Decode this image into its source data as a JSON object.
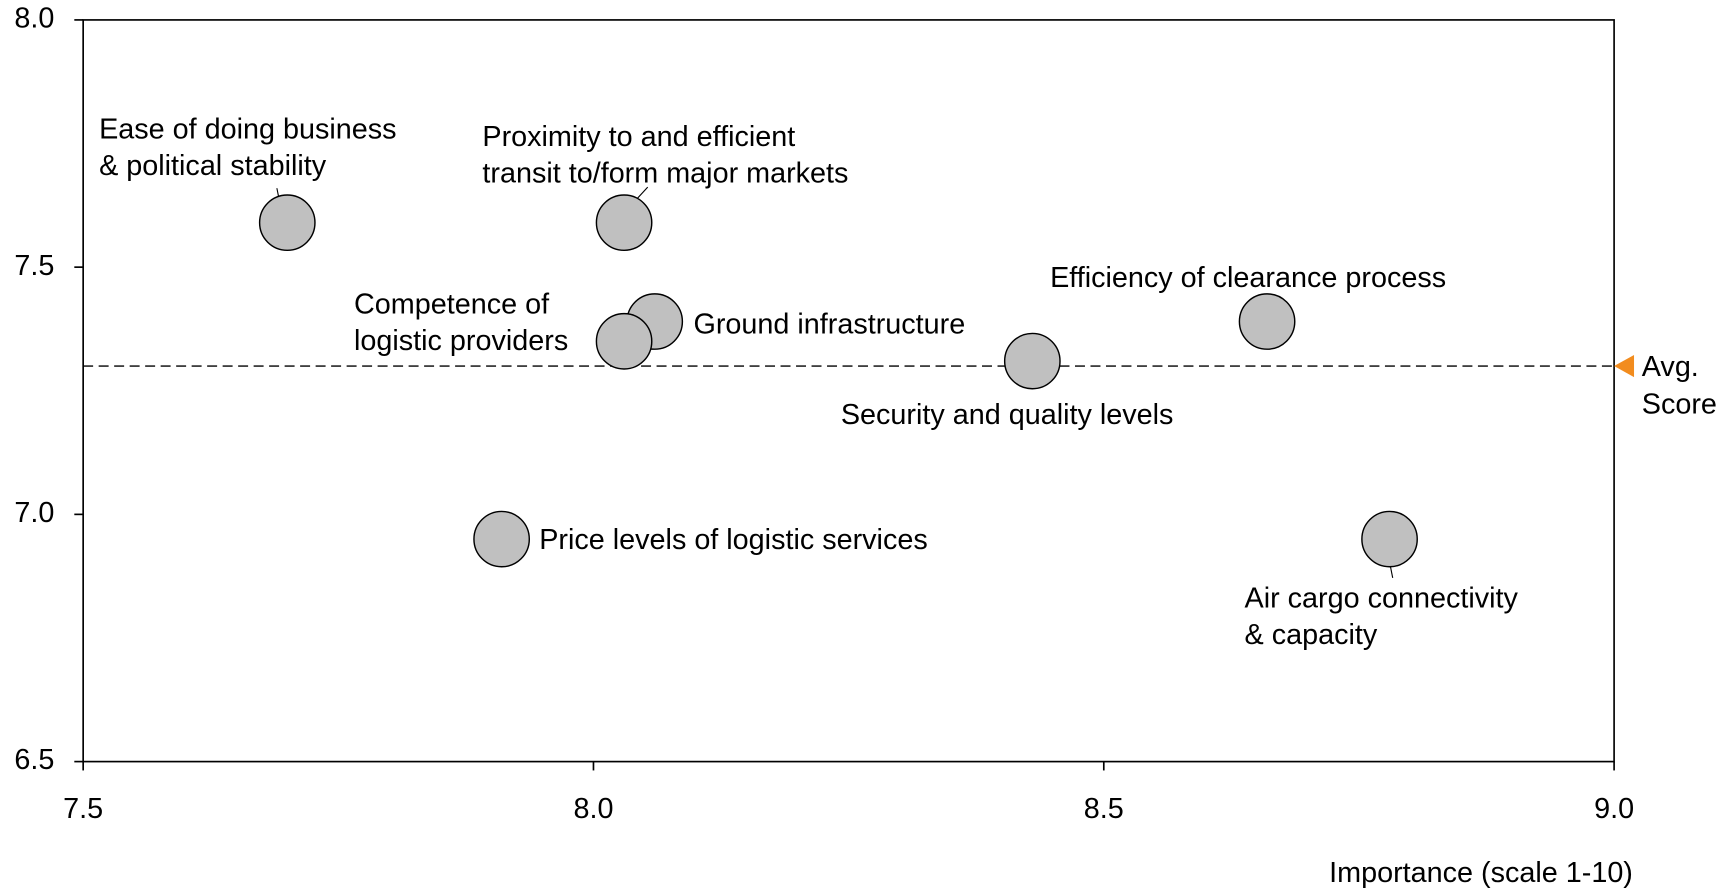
{
  "chart_data": {
    "type": "scatter",
    "x_label": "Importance (scale 1-10)",
    "xlim": [
      7.5,
      9.0
    ],
    "ylim": [
      6.5,
      8.0
    ],
    "xticks": [
      {
        "value": 7.5,
        "label": "7.5"
      },
      {
        "value": 8.0,
        "label": "8.0"
      },
      {
        "value": 8.5,
        "label": "8.5"
      },
      {
        "value": 9.0,
        "label": "9.0"
      }
    ],
    "yticks": [
      {
        "value": 6.5,
        "label": "6.5"
      },
      {
        "value": 7.0,
        "label": "7.0"
      },
      {
        "value": 7.5,
        "label": "7.5"
      },
      {
        "value": 8.0,
        "label": "8.0"
      }
    ],
    "color": "#c0c0c0",
    "labels": [
      [
        "Ease of doing business",
        "& political stability"
      ],
      [
        "Proximity to and efficient",
        "transit to/form major markets"
      ],
      [
        "Ground infrastructure"
      ],
      [
        "Competence of",
        "logistic providers"
      ],
      [
        "Security and quality levels"
      ],
      [
        "Efficiency of clearance process"
      ],
      [
        "Price levels of logistic services"
      ],
      [
        "Air cargo connectivity",
        "& capacity"
      ]
    ],
    "x": [
      7.7,
      8.03,
      8.06,
      8.03,
      8.43,
      8.66,
      7.91,
      8.78
    ],
    "y": [
      7.59,
      7.59,
      7.39,
      7.35,
      7.31,
      7.39,
      6.95,
      6.95
    ],
    "avg_line": {
      "value": 7.3,
      "label": [
        "Avg.",
        "Score"
      ],
      "color": "#f28c1e"
    }
  }
}
